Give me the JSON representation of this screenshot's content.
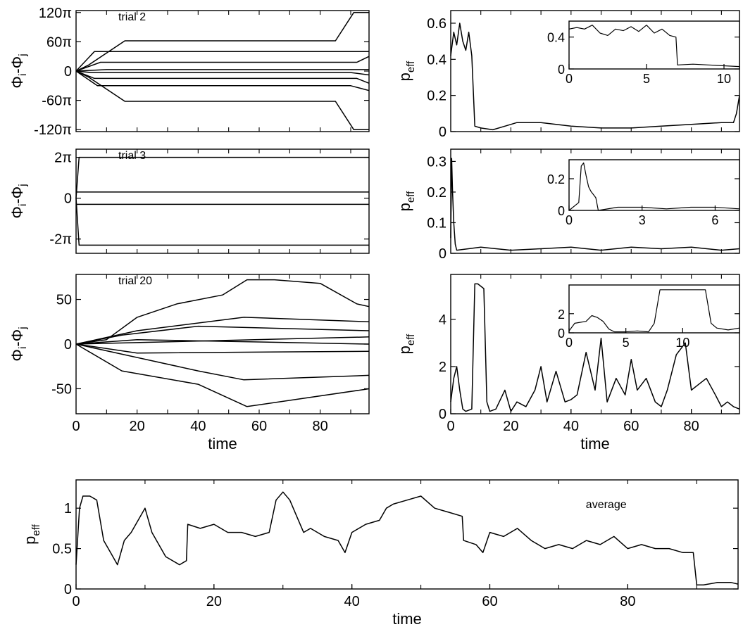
{
  "chart_data": [
    {
      "id": "trial2-phase",
      "type": "line",
      "annotation": "trial 2",
      "ylabel": "Φi-Φj",
      "xlim": [
        0,
        96
      ],
      "ylim": [
        -124,
        124
      ],
      "yticks": [
        {
          "v": 120,
          "label": "120π"
        },
        {
          "v": 60,
          "label": "60π"
        },
        {
          "v": 0,
          "label": "0"
        },
        {
          "v": -60,
          "label": "-60π"
        },
        {
          "v": -120,
          "label": "-120π"
        }
      ],
      "xticks": [],
      "series": [
        {
          "x": [
            0,
            4,
            16,
            85,
            91,
            96
          ],
          "y": [
            0,
            12,
            62,
            62,
            120,
            120
          ]
        },
        {
          "x": [
            0,
            6,
            96
          ],
          "y": [
            0,
            40,
            40
          ]
        },
        {
          "x": [
            0,
            8,
            92,
            96
          ],
          "y": [
            0,
            18,
            18,
            30
          ]
        },
        {
          "x": [
            0,
            10,
            96
          ],
          "y": [
            0,
            3,
            3
          ]
        },
        {
          "x": [
            0,
            5,
            90,
            96
          ],
          "y": [
            0,
            -3,
            -3,
            -8
          ]
        },
        {
          "x": [
            0,
            6,
            92,
            96
          ],
          "y": [
            0,
            -15,
            -15,
            -25
          ]
        },
        {
          "x": [
            0,
            7,
            90,
            96
          ],
          "y": [
            0,
            -30,
            -30,
            -40
          ]
        },
        {
          "x": [
            0,
            4,
            16,
            85,
            91,
            96
          ],
          "y": [
            0,
            -12,
            -62,
            -62,
            -120,
            -120
          ]
        }
      ]
    },
    {
      "id": "trial2-peff",
      "type": "line",
      "ylabel": "peff",
      "xlim": [
        0,
        96
      ],
      "ylim": [
        0,
        0.67
      ],
      "yticks": [
        {
          "v": 0,
          "label": "0"
        },
        {
          "v": 0.2,
          "label": "0.2"
        },
        {
          "v": 0.4,
          "label": "0.4"
        },
        {
          "v": 0.6,
          "label": "0.6"
        }
      ],
      "xticks": [],
      "series": [
        {
          "x": [
            0,
            1,
            2,
            3,
            4,
            5,
            6,
            7,
            8,
            10,
            14,
            18,
            22,
            30,
            40,
            50,
            55,
            60,
            70,
            80,
            90,
            94,
            95,
            96
          ],
          "y": [
            0.42,
            0.55,
            0.48,
            0.6,
            0.5,
            0.45,
            0.55,
            0.42,
            0.03,
            0.02,
            0.01,
            0.03,
            0.05,
            0.05,
            0.03,
            0.02,
            0.02,
            0.02,
            0.03,
            0.04,
            0.05,
            0.05,
            0.1,
            0.2
          ]
        }
      ]
    },
    {
      "id": "trial2-peff-inset",
      "type": "line",
      "xlim": [
        0,
        11
      ],
      "ylim": [
        0,
        0.6
      ],
      "yticks": [
        {
          "v": 0,
          "label": "0"
        },
        {
          "v": 0.4,
          "label": "0.4"
        }
      ],
      "xticks": [
        {
          "v": 0,
          "label": "0"
        },
        {
          "v": 5,
          "label": "5"
        },
        {
          "v": 10,
          "label": "10"
        }
      ],
      "series": [
        {
          "x": [
            0,
            0.5,
            1,
            1.5,
            2,
            2.5,
            3,
            3.5,
            4,
            4.5,
            5,
            5.5,
            6,
            6.5,
            6.9,
            7,
            8,
            9,
            10,
            11
          ],
          "y": [
            0.5,
            0.52,
            0.5,
            0.55,
            0.45,
            0.42,
            0.5,
            0.48,
            0.53,
            0.47,
            0.55,
            0.45,
            0.5,
            0.42,
            0.4,
            0.05,
            0.06,
            0.05,
            0.04,
            0.03
          ]
        }
      ]
    },
    {
      "id": "trial3-phase",
      "type": "line",
      "annotation": "trial 3",
      "ylabel": "Φi-Φj",
      "xlim": [
        0,
        96
      ],
      "ylim": [
        -2.7,
        2.4
      ],
      "yticks": [
        {
          "v": 2,
          "label": "2π"
        },
        {
          "v": 0,
          "label": "0"
        },
        {
          "v": -2,
          "label": "-2π"
        }
      ],
      "xticks": [],
      "series": [
        {
          "x": [
            0,
            1,
            96
          ],
          "y": [
            0,
            2.0,
            2.0
          ]
        },
        {
          "x": [
            0,
            96
          ],
          "y": [
            0.3,
            0.3
          ]
        },
        {
          "x": [
            0,
            96
          ],
          "y": [
            -0.3,
            -0.3
          ]
        },
        {
          "x": [
            0,
            1,
            96
          ],
          "y": [
            0,
            -2.3,
            -2.3
          ]
        }
      ]
    },
    {
      "id": "trial3-peff",
      "type": "line",
      "ylabel": "peff",
      "xlim": [
        0,
        96
      ],
      "ylim": [
        0,
        0.34
      ],
      "yticks": [
        {
          "v": 0,
          "label": "0"
        },
        {
          "v": 0.1,
          "label": "0.1"
        },
        {
          "v": 0.2,
          "label": "0.2"
        },
        {
          "v": 0.3,
          "label": "0.3"
        }
      ],
      "xticks": [],
      "series": [
        {
          "x": [
            0,
            0.3,
            0.6,
            1,
            1.5,
            2,
            10,
            20,
            30,
            40,
            50,
            60,
            70,
            80,
            90,
            96
          ],
          "y": [
            0.05,
            0.31,
            0.2,
            0.1,
            0.03,
            0.01,
            0.02,
            0.01,
            0.015,
            0.02,
            0.01,
            0.02,
            0.015,
            0.02,
            0.01,
            0.015
          ]
        }
      ]
    },
    {
      "id": "trial3-peff-inset",
      "type": "line",
      "xlim": [
        0,
        7
      ],
      "ylim": [
        0,
        0.32
      ],
      "yticks": [
        {
          "v": 0,
          "label": "0"
        },
        {
          "v": 0.2,
          "label": "0.2"
        }
      ],
      "xticks": [
        {
          "v": 0,
          "label": "0"
        },
        {
          "v": 3,
          "label": "3"
        },
        {
          "v": 6,
          "label": "6"
        }
      ],
      "series": [
        {
          "x": [
            0,
            0.4,
            0.5,
            0.6,
            0.7,
            0.8,
            0.9,
            1.0,
            1.1,
            1.2,
            2,
            3,
            4,
            5,
            6,
            7
          ],
          "y": [
            0,
            0.05,
            0.28,
            0.3,
            0.22,
            0.15,
            0.12,
            0.1,
            0.08,
            0,
            0.02,
            0.02,
            0.01,
            0.02,
            0.02,
            0.01
          ]
        }
      ]
    },
    {
      "id": "trial20-phase",
      "type": "line",
      "annotation": "trial 20",
      "ylabel": "Φi-Φj",
      "xlim": [
        0,
        96
      ],
      "ylim": [
        -78,
        78
      ],
      "yticks": [
        {
          "v": 50,
          "label": "50"
        },
        {
          "v": 0,
          "label": "0"
        },
        {
          "v": -50,
          "label": "-50"
        }
      ],
      "xticks": [],
      "series": [
        {
          "x": [
            0,
            10,
            20,
            33,
            48,
            56,
            65,
            80,
            92,
            96
          ],
          "y": [
            0,
            5,
            30,
            45,
            55,
            72,
            72,
            68,
            45,
            42
          ]
        },
        {
          "x": [
            0,
            20,
            55,
            96
          ],
          "y": [
            0,
            15,
            30,
            25
          ]
        },
        {
          "x": [
            0,
            15,
            40,
            96
          ],
          "y": [
            0,
            10,
            20,
            15
          ]
        },
        {
          "x": [
            0,
            96
          ],
          "y": [
            0,
            8
          ]
        },
        {
          "x": [
            0,
            20,
            96
          ],
          "y": [
            0,
            5,
            0
          ]
        },
        {
          "x": [
            0,
            20,
            96
          ],
          "y": [
            0,
            -10,
            -8
          ]
        },
        {
          "x": [
            0,
            40,
            55,
            96
          ],
          "y": [
            0,
            -30,
            -40,
            -35
          ]
        },
        {
          "x": [
            0,
            15,
            40,
            56,
            96
          ],
          "y": [
            0,
            -30,
            -45,
            -70,
            -50
          ]
        }
      ]
    },
    {
      "id": "trial20-peff",
      "type": "line",
      "ylabel": "peff",
      "xlabel": "time",
      "xlim": [
        0,
        96
      ],
      "ylim": [
        0,
        5.9
      ],
      "yticks": [
        {
          "v": 0,
          "label": "0"
        },
        {
          "v": 2,
          "label": "2"
        },
        {
          "v": 4,
          "label": "4"
        }
      ],
      "xticks": [
        {
          "v": 0,
          "label": "0"
        },
        {
          "v": 20,
          "label": "20"
        },
        {
          "v": 40,
          "label": "40"
        },
        {
          "v": 60,
          "label": "60"
        },
        {
          "v": 80,
          "label": "80"
        }
      ],
      "series": [
        {
          "x": [
            0,
            1,
            2,
            3,
            4,
            5,
            7,
            8,
            9,
            11,
            12,
            13,
            15,
            18,
            20,
            22,
            25,
            28,
            30,
            32,
            35,
            38,
            40,
            42,
            45,
            48,
            50,
            52,
            55,
            58,
            60,
            62,
            65,
            68,
            70,
            72,
            75,
            78,
            80,
            82,
            85,
            88,
            90,
            92,
            94,
            96
          ],
          "y": [
            0.5,
            1.5,
            2,
            1,
            0.2,
            0.1,
            0.2,
            5.5,
            5.5,
            5.3,
            0.5,
            0.1,
            0.2,
            1.0,
            0.1,
            0.5,
            0.3,
            1.0,
            2.0,
            0.5,
            1.8,
            0.5,
            0.6,
            0.8,
            2.6,
            1.0,
            3.2,
            0.5,
            1.5,
            0.8,
            2.3,
            1.0,
            1.5,
            0.5,
            0.3,
            1.0,
            2.5,
            3.0,
            1.0,
            1.2,
            1.5,
            0.8,
            0.3,
            0.5,
            0.3,
            0.2
          ]
        }
      ]
    },
    {
      "id": "trial20-peff-inset",
      "type": "line",
      "xlim": [
        0,
        15
      ],
      "ylim": [
        0,
        5
      ],
      "yticks": [
        {
          "v": 0,
          "label": "0"
        },
        {
          "v": 2,
          "label": "2"
        }
      ],
      "xticks": [
        {
          "v": 0,
          "label": "0"
        },
        {
          "v": 5,
          "label": "5"
        },
        {
          "v": 10,
          "label": "10"
        }
      ],
      "series": [
        {
          "x": [
            0,
            0.5,
            1.5,
            2,
            2.5,
            3,
            3.5,
            4,
            5,
            6,
            7,
            7.5,
            8,
            9,
            10,
            11,
            12,
            12.5,
            13,
            14,
            15
          ],
          "y": [
            0.2,
            1.0,
            1.2,
            1.8,
            1.6,
            1.2,
            0.4,
            0.1,
            0.1,
            0.2,
            0.1,
            1.0,
            4.5,
            4.5,
            4.5,
            4.5,
            4.5,
            1.0,
            0.5,
            0.3,
            0.5
          ]
        }
      ]
    },
    {
      "id": "average-peff",
      "type": "line",
      "annotation": "average",
      "ylabel": "peff",
      "xlabel": "time",
      "xlim": [
        0,
        96
      ],
      "ylim": [
        0,
        1.35
      ],
      "yticks": [
        {
          "v": 0,
          "label": "0"
        },
        {
          "v": 0.5,
          "label": "0.5"
        },
        {
          "v": 1,
          "label": "1"
        }
      ],
      "xticks": [
        {
          "v": 0,
          "label": "0"
        },
        {
          "v": 20,
          "label": "20"
        },
        {
          "v": 40,
          "label": "40"
        },
        {
          "v": 60,
          "label": "60"
        },
        {
          "v": 80,
          "label": "80"
        }
      ],
      "series": [
        {
          "x": [
            0,
            0.5,
            1,
            2,
            3,
            4,
            5,
            6,
            7,
            8,
            10,
            11,
            12,
            13,
            15,
            16,
            16.2,
            18,
            20,
            22,
            24,
            26,
            28,
            29,
            30,
            31,
            32,
            33,
            34,
            35,
            36,
            38,
            39,
            40,
            42,
            44,
            45,
            46,
            48,
            50,
            52,
            54,
            56,
            56.2,
            58,
            59,
            60,
            62,
            64,
            66,
            68,
            70,
            72,
            74,
            76,
            78,
            80,
            82,
            84,
            86,
            88,
            89.5,
            90,
            91,
            93,
            95,
            96
          ],
          "y": [
            0.3,
            1.0,
            1.15,
            1.15,
            1.1,
            0.6,
            0.45,
            0.3,
            0.6,
            0.7,
            1.0,
            0.7,
            0.55,
            0.4,
            0.3,
            0.35,
            0.8,
            0.75,
            0.8,
            0.7,
            0.7,
            0.65,
            0.7,
            1.1,
            1.2,
            1.1,
            0.9,
            0.7,
            0.75,
            0.7,
            0.65,
            0.6,
            0.45,
            0.7,
            0.8,
            0.85,
            1.0,
            1.05,
            1.1,
            1.15,
            1.0,
            0.95,
            0.9,
            0.6,
            0.55,
            0.45,
            0.7,
            0.65,
            0.75,
            0.6,
            0.5,
            0.55,
            0.5,
            0.6,
            0.55,
            0.65,
            0.5,
            0.55,
            0.5,
            0.5,
            0.45,
            0.45,
            0.05,
            0.05,
            0.08,
            0.08,
            0.06
          ]
        }
      ]
    }
  ]
}
